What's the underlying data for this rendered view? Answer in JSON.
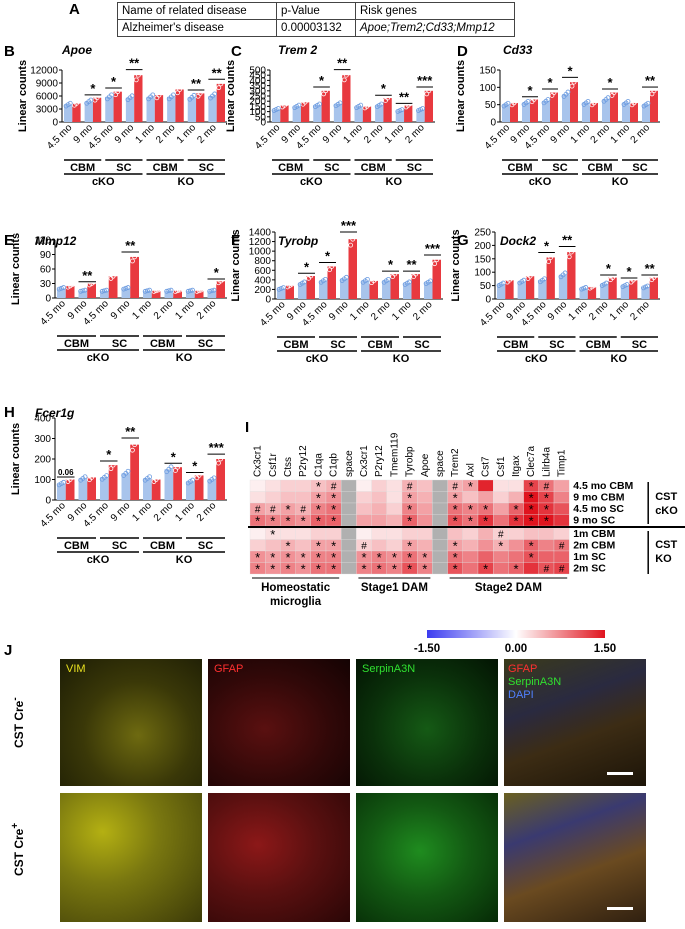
{
  "panel_a": {
    "letter": "A",
    "headers": [
      "Name of related disease",
      "p-Value",
      "Risk genes"
    ],
    "row": [
      "Alzheimer's disease",
      "0.00003132",
      "Apoe;Trem2;Cd33;Mmp12"
    ]
  },
  "colors": {
    "control": "#a8c4ec",
    "ko": "#e8393f",
    "heat_low": "#3c3cf0",
    "heat_mid": "#ffffff",
    "heat_high": "#e0141e"
  },
  "shared": {
    "ylabel": "Linear counts",
    "cko_ages": [
      "4.5 mo",
      "9 mo",
      "4.5 mo",
      "9 mo"
    ],
    "ko_ages": [
      "1 mo",
      "2 mo",
      "1 mo",
      "2 mo"
    ],
    "region_cbm": "CBM",
    "region_sc": "SC",
    "group_cko": "cKO",
    "group_ko": "KO"
  },
  "chart_data": [
    {
      "panel": "B",
      "gene": "Apoe",
      "type": "bar",
      "ylim": [
        0,
        12000
      ],
      "ticks": [
        "0",
        "3000",
        "6000",
        "9000",
        "12000"
      ],
      "series": [
        {
          "name": "control",
          "values": [
            4000,
            4700,
            5800,
            5600,
            5800,
            5800,
            5700,
            6000
          ]
        },
        {
          "name": "KO",
          "values": [
            4300,
            5600,
            7000,
            10800,
            6200,
            7500,
            6600,
            8800
          ]
        }
      ],
      "sig": [
        "",
        "*",
        "*",
        "**",
        "",
        "",
        "**",
        "**"
      ]
    },
    {
      "panel": "C",
      "gene": "Trem 2",
      "type": "bar",
      "ylim": [
        0,
        500
      ],
      "ticks": [
        "0",
        "50",
        "100",
        "150",
        "200",
        "250",
        "300",
        "350",
        "400",
        "450",
        "500"
      ],
      "series": [
        {
          "name": "control",
          "values": [
            120,
            150,
            160,
            170,
            150,
            160,
            110,
            120
          ]
        },
        {
          "name": "KO",
          "values": [
            160,
            190,
            300,
            450,
            150,
            230,
            160,
            300
          ]
        }
      ],
      "sig": [
        "",
        "",
        "*",
        "**",
        "",
        "*",
        "**",
        "***"
      ]
    },
    {
      "panel": "D",
      "gene": "Cd33",
      "type": "bar",
      "ylim": [
        0,
        150
      ],
      "ticks": [
        "0",
        "50",
        "100",
        "150"
      ],
      "series": [
        {
          "name": "control",
          "values": [
            50,
            55,
            60,
            80,
            55,
            65,
            55,
            50
          ]
        },
        {
          "name": "KO",
          "values": [
            55,
            65,
            85,
            115,
            55,
            85,
            55,
            90
          ]
        }
      ],
      "sig": [
        "",
        "*",
        "*",
        "*",
        "",
        "*",
        "",
        "**"
      ]
    },
    {
      "panel": "E",
      "gene": "Mmp12",
      "type": "bar",
      "ylim": [
        0,
        120
      ],
      "ticks": [
        "0",
        "30",
        "60",
        "90",
        "120"
      ],
      "series": [
        {
          "name": "control",
          "values": [
            20,
            15,
            15,
            20,
            15,
            15,
            15,
            15
          ]
        },
        {
          "name": "KO",
          "values": [
            25,
            30,
            45,
            85,
            15,
            15,
            15,
            35
          ]
        }
      ],
      "sig": [
        "",
        "**",
        "",
        "**",
        "",
        "",
        "",
        "*"
      ]
    },
    {
      "panel": "F",
      "gene": "Tyrobp",
      "type": "bar",
      "ylim": [
        0,
        1400
      ],
      "ticks": [
        "0",
        "200",
        "400",
        "600",
        "800",
        "1000",
        "1200",
        "1400"
      ],
      "series": [
        {
          "name": "control",
          "values": [
            220,
            330,
            380,
            420,
            380,
            380,
            330,
            350
          ]
        },
        {
          "name": "KO",
          "values": [
            280,
            480,
            680,
            1250,
            380,
            520,
            520,
            820
          ]
        }
      ],
      "sig": [
        "",
        "*",
        "*",
        "***",
        "",
        "*",
        "**",
        "***"
      ]
    },
    {
      "panel": "G",
      "gene": "Dock2",
      "type": "bar",
      "ylim": [
        0,
        250
      ],
      "ticks": [
        "0",
        "50",
        "100",
        "150",
        "200",
        "250"
      ],
      "series": [
        {
          "name": "control",
          "values": [
            55,
            65,
            70,
            90,
            40,
            55,
            50,
            45
          ]
        },
        {
          "name": "KO",
          "values": [
            70,
            85,
            155,
            175,
            45,
            80,
            70,
            80
          ]
        }
      ],
      "sig": [
        "",
        "",
        "*",
        "**",
        "",
        "*",
        "*",
        "**"
      ]
    },
    {
      "panel": "H",
      "gene": "Fcer1g",
      "type": "bar",
      "ylim": [
        0,
        400
      ],
      "ticks": [
        "0",
        "100",
        "200",
        "300",
        "400"
      ],
      "series": [
        {
          "name": "control",
          "values": [
            80,
            105,
            110,
            130,
            105,
            150,
            90,
            100
          ]
        },
        {
          "name": "KO",
          "values": [
            100,
            110,
            170,
            270,
            100,
            160,
            120,
            200
          ]
        }
      ],
      "sig": [
        "0.06",
        "",
        "*",
        "**",
        "",
        "*",
        "*",
        "***"
      ]
    },
    {
      "panel": "I",
      "type": "heatmap",
      "columns": [
        "Cx3cr1",
        "Csf1r",
        "Ctss",
        "P2ry12",
        "C1qa",
        "C1qb",
        "space",
        "Cx3cr1",
        "P2ry12",
        "Tmem119",
        "Tyrobp",
        "Apoe",
        "space",
        "Trem2",
        "Axl",
        "Cst7",
        "Csf1",
        "Itgax",
        "Clec7a",
        "Lilrb4a",
        "Timp1"
      ],
      "rows": [
        "4.5 mo CBM",
        "9 mo CBM",
        "4.5 mo SC",
        "9 mo SC",
        "1m CBM",
        "2m CBM",
        "1m SC",
        "2m SC"
      ],
      "group_cst_cko": "CST cKO",
      "group_cst_ko": "CST KO",
      "column_groups": [
        "Homeostatic microglia",
        "Stage1 DAM",
        "Stage2 DAM"
      ],
      "scale": [
        -1.5,
        1.5
      ],
      "scale_labels": [
        "-1.50",
        "0.00",
        "1.50"
      ],
      "values": [
        [
          0.1,
          0.2,
          0.3,
          0.3,
          0.4,
          0.5,
          null,
          0.1,
          0.3,
          0.2,
          0.5,
          0.4,
          null,
          0.5,
          0.6,
          1.4,
          0.2,
          0.2,
          1.2,
          0.9,
          0.6
        ],
        [
          0.2,
          0.3,
          0.4,
          0.4,
          0.6,
          0.7,
          null,
          0.3,
          0.4,
          0.2,
          0.6,
          0.5,
          null,
          0.6,
          0.4,
          0.6,
          0.3,
          0.5,
          1.5,
          1.2,
          0.8
        ],
        [
          0.6,
          0.5,
          0.6,
          0.5,
          0.8,
          0.9,
          null,
          0.4,
          0.5,
          0.3,
          0.8,
          0.6,
          null,
          0.9,
          0.8,
          0.9,
          0.6,
          1.0,
          1.5,
          1.3,
          1.1
        ],
        [
          0.9,
          0.8,
          0.8,
          0.7,
          1.0,
          1.0,
          null,
          0.6,
          0.6,
          0.5,
          1.0,
          0.7,
          null,
          1.1,
          0.9,
          1.3,
          0.9,
          1.3,
          1.5,
          1.5,
          1.3
        ],
        [
          0.1,
          0.2,
          0.2,
          0.2,
          0.3,
          0.3,
          null,
          0.1,
          0.2,
          0.2,
          0.3,
          0.3,
          null,
          0.4,
          0.3,
          0.5,
          0.3,
          0.3,
          0.4,
          0.4,
          0.3
        ],
        [
          0.3,
          0.4,
          0.5,
          0.4,
          0.6,
          0.6,
          null,
          0.3,
          0.4,
          0.3,
          0.6,
          0.5,
          null,
          0.6,
          0.5,
          0.7,
          0.5,
          0.7,
          1.0,
          0.8,
          0.9
        ],
        [
          0.7,
          0.6,
          0.7,
          0.6,
          0.8,
          0.8,
          null,
          0.7,
          0.8,
          0.7,
          0.9,
          0.7,
          null,
          0.9,
          0.8,
          1.0,
          0.8,
          0.9,
          1.1,
          1.0,
          1.0
        ],
        [
          0.8,
          0.7,
          0.8,
          0.7,
          0.9,
          0.9,
          null,
          0.8,
          0.9,
          0.8,
          1.1,
          0.8,
          null,
          1.1,
          0.9,
          1.2,
          0.9,
          1.0,
          1.3,
          1.1,
          1.2
        ]
      ],
      "marks": [
        [
          "",
          "",
          "",
          "",
          "*",
          "#",
          "",
          "",
          "",
          "",
          "#",
          "",
          "",
          "#",
          "*",
          "",
          "",
          "",
          "*",
          "#",
          ""
        ],
        [
          "",
          "",
          "",
          "",
          "*",
          "*",
          "",
          "",
          "",
          "",
          "*",
          "",
          "",
          "*",
          "",
          "",
          "",
          "",
          "*",
          "*",
          ""
        ],
        [
          "#",
          "#",
          "*",
          "#",
          "*",
          "*",
          "",
          "",
          "",
          "",
          "*",
          "",
          "",
          "*",
          "*",
          "*",
          "",
          "*",
          "*",
          "*",
          ""
        ],
        [
          "*",
          "*",
          "*",
          "*",
          "*",
          "*",
          "",
          "",
          "",
          "",
          "*",
          "",
          "",
          "*",
          "*",
          "*",
          "",
          "*",
          "*",
          "*",
          ""
        ],
        [
          "",
          "*",
          "",
          "",
          "",
          "",
          "",
          "",
          "",
          "",
          "",
          "",
          "",
          "",
          "",
          "",
          "#",
          "",
          "",
          "",
          ""
        ],
        [
          "",
          "",
          "*",
          "",
          "*",
          "*",
          "",
          "#",
          "",
          "",
          "*",
          "",
          "",
          "*",
          "",
          "",
          "*",
          "",
          "*",
          "",
          "#"
        ],
        [
          "*",
          "*",
          "*",
          "*",
          "*",
          "*",
          "",
          "*",
          "*",
          "*",
          "*",
          "*",
          "",
          "*",
          "",
          "",
          "",
          "",
          "*",
          "",
          ""
        ],
        [
          "*",
          "*",
          "*",
          "*",
          "*",
          "*",
          "",
          "*",
          "*",
          "*",
          "*",
          "*",
          "",
          "*",
          "",
          "*",
          "",
          "*",
          "",
          "#",
          "#"
        ]
      ]
    }
  ],
  "panel_j": {
    "letter": "J",
    "column_titles": [
      "VIM",
      "GFAP",
      "SerpinA3N",
      "GFAP",
      "SerpinA3N",
      "DAPI"
    ],
    "row_labels": [
      "CST Cre",
      "-",
      "CST Cre",
      "+"
    ]
  }
}
